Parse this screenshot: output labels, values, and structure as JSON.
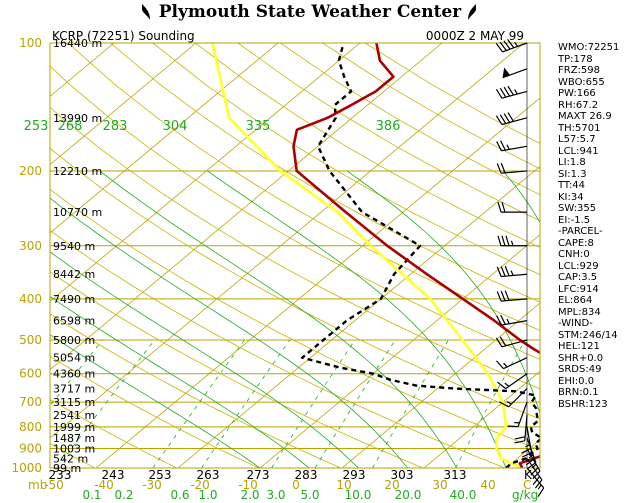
{
  "header": {
    "title": "Plymouth State Weather Center",
    "station": "KCRP (72251) Sounding",
    "time": "0000Z  2 MAY 99"
  },
  "colors": {
    "frame": "#b8a300",
    "isotherm": "#b8a300",
    "dry_adiabat": "#c8b400",
    "moist_adiabat": "#22aa22",
    "mixing_ratio": "#22aa22",
    "temperature": "#aa0000",
    "dewpoint": "#000000",
    "parcel": "#ffff33",
    "axis_text": "#b8a300",
    "theta_text": "#22aa22",
    "mixing_text": "#22aa22"
  },
  "chart_data": {
    "type": "line",
    "subtype": "skew-T log-p sounding",
    "pressure_axis": {
      "ticks": [
        100,
        200,
        300,
        400,
        500,
        600,
        700,
        800,
        900,
        1000
      ],
      "log_scale": true,
      "range": [
        100,
        1000
      ]
    },
    "temperature_axis": {
      "ticks": [
        -50,
        -40,
        -30,
        -20,
        -10,
        0,
        10,
        20,
        30,
        40
      ],
      "unit_label": "C",
      "range": [
        -50,
        50
      ]
    },
    "height_labels": [
      {
        "p": 100,
        "text": "16440 m"
      },
      {
        "p": 150,
        "text": "13990 m"
      },
      {
        "p": 200,
        "text": "12210 m"
      },
      {
        "p": 250,
        "text": "10770 m"
      },
      {
        "p": 300,
        "text": "9540 m"
      },
      {
        "p": 350,
        "text": "8442 m"
      },
      {
        "p": 400,
        "text": "7490 m"
      },
      {
        "p": 450,
        "text": "6598 m"
      },
      {
        "p": 500,
        "text": "5800 m"
      },
      {
        "p": 550,
        "text": "5054 m"
      },
      {
        "p": 600,
        "text": "4360 m"
      },
      {
        "p": 650,
        "text": "3717 m"
      },
      {
        "p": 700,
        "text": "3115 m"
      },
      {
        "p": 750,
        "text": "2541 m"
      },
      {
        "p": 800,
        "text": "1999 m"
      },
      {
        "p": 850,
        "text": "1487 m"
      },
      {
        "p": 900,
        "text": "1003 m"
      },
      {
        "p": 950,
        "text": "542 m"
      },
      {
        "p": 1000,
        "text": "99 m"
      }
    ],
    "theta_labels_top": [
      "253",
      "268",
      "283",
      "304",
      "335",
      "386"
    ],
    "theta_labels_bottom": [
      "233",
      "243",
      "253",
      "263",
      "273",
      "283",
      "293",
      "303",
      "313"
    ],
    "bottom_left_label": "mb",
    "bottom_right_label": "K",
    "mixing_ratio_labels": [
      "0.1",
      "0.2",
      "0.6",
      "1.0",
      "2.0",
      "3.0",
      "5.0",
      "10.0",
      "20.0",
      "40.0"
    ],
    "mixing_ratio_unit": "g/kg",
    "series": [
      {
        "name": "temperature",
        "points": [
          [
            1000,
            22
          ],
          [
            975,
            21
          ],
          [
            950,
            22
          ],
          [
            925,
            23
          ],
          [
            900,
            22
          ],
          [
            875,
            21
          ],
          [
            850,
            22
          ],
          [
            825,
            21.5
          ],
          [
            800,
            21
          ],
          [
            775,
            19
          ],
          [
            750,
            19
          ],
          [
            725,
            18
          ],
          [
            700,
            16.5
          ],
          [
            675,
            15
          ],
          [
            650,
            14
          ],
          [
            625,
            17.5
          ],
          [
            600,
            14
          ],
          [
            575,
            11
          ],
          [
            550,
            9
          ],
          [
            525,
            6
          ],
          [
            500,
            3
          ],
          [
            450,
            -3
          ],
          [
            400,
            -10
          ],
          [
            350,
            -18
          ],
          [
            300,
            -27
          ],
          [
            250,
            -37
          ],
          [
            200,
            -49
          ],
          [
            175,
            -53
          ],
          [
            160,
            -55
          ],
          [
            150,
            -53
          ],
          [
            140,
            -52
          ],
          [
            130,
            -51
          ],
          [
            120,
            -51
          ],
          [
            110,
            -55
          ],
          [
            100,
            -58
          ]
        ]
      },
      {
        "name": "dewpoint",
        "points": [
          [
            1000,
            20
          ],
          [
            975,
            20
          ],
          [
            950,
            21
          ],
          [
            925,
            21
          ],
          [
            900,
            21
          ],
          [
            875,
            20
          ],
          [
            850,
            20
          ],
          [
            825,
            18
          ],
          [
            800,
            17
          ],
          [
            775,
            17
          ],
          [
            750,
            16
          ],
          [
            725,
            15
          ],
          [
            700,
            13.5
          ],
          [
            675,
            13
          ],
          [
            660,
            10
          ],
          [
            650,
            2
          ],
          [
            640,
            -3
          ],
          [
            620,
            -7
          ],
          [
            600,
            -10
          ],
          [
            580,
            -15
          ],
          [
            550,
            -21
          ],
          [
            500,
            -21
          ],
          [
            450,
            -21
          ],
          [
            400,
            -20
          ],
          [
            350,
            -22
          ],
          [
            300,
            -23
          ],
          [
            250,
            -35
          ],
          [
            200,
            -45
          ],
          [
            175,
            -50
          ],
          [
            150,
            -52
          ],
          [
            140,
            -54
          ],
          [
            130,
            -54
          ],
          [
            120,
            -57
          ],
          [
            110,
            -60
          ],
          [
            100,
            -62
          ]
        ]
      },
      {
        "name": "parcel",
        "points": [
          [
            1000,
            22
          ],
          [
            950,
            18
          ],
          [
            900,
            16
          ],
          [
            850,
            14.5
          ],
          [
            800,
            14
          ],
          [
            700,
            10
          ],
          [
            600,
            4
          ],
          [
            500,
            -4
          ],
          [
            400,
            -14
          ],
          [
            300,
            -29
          ],
          [
            250,
            -38
          ],
          [
            200,
            -51
          ],
          [
            150,
            -65
          ],
          [
            100,
            -78
          ]
        ]
      }
    ],
    "wind_barbs": [
      {
        "p": 100,
        "dir": 250,
        "spd": 45
      },
      {
        "p": 115,
        "dir": 250,
        "spd": 50
      },
      {
        "p": 130,
        "dir": 255,
        "spd": 45
      },
      {
        "p": 150,
        "dir": 255,
        "spd": 40
      },
      {
        "p": 175,
        "dir": 260,
        "spd": 25
      },
      {
        "p": 200,
        "dir": 265,
        "spd": 20
      },
      {
        "p": 250,
        "dir": 270,
        "spd": 20
      },
      {
        "p": 300,
        "dir": 270,
        "spd": 35
      },
      {
        "p": 350,
        "dir": 265,
        "spd": 35
      },
      {
        "p": 400,
        "dir": 265,
        "spd": 30
      },
      {
        "p": 450,
        "dir": 260,
        "spd": 25
      },
      {
        "p": 500,
        "dir": 255,
        "spd": 20
      },
      {
        "p": 550,
        "dir": 245,
        "spd": 15
      },
      {
        "p": 600,
        "dir": 235,
        "spd": 15
      },
      {
        "p": 650,
        "dir": 225,
        "spd": 15
      },
      {
        "p": 700,
        "dir": 200,
        "spd": 15
      },
      {
        "p": 750,
        "dir": 185,
        "spd": 20
      },
      {
        "p": 800,
        "dir": 170,
        "spd": 25
      },
      {
        "p": 850,
        "dir": 160,
        "spd": 25
      },
      {
        "p": 900,
        "dir": 150,
        "spd": 25
      },
      {
        "p": 950,
        "dir": 145,
        "spd": 20
      },
      {
        "p": 1000,
        "dir": 140,
        "spd": 15
      }
    ]
  },
  "indices": [
    "WMO:72251",
    "TP:178",
    "FRZ:598",
    "WBO:655",
    "PW:166",
    "RH:67.2",
    "MAXT 26.9",
    "TH:5701",
    "L57:5.7",
    "LCL:941",
    "LI:1.8",
    "SI:1.3",
    "TT:44",
    "KI:34",
    "SW:355",
    "EI:-1.5",
    "-PARCEL-",
    "CAPE:8",
    "CNH:0",
    "LCL:929",
    "CAP:3.5",
    "LFC:914",
    "EL:864",
    "MPL:834",
    "-WIND-",
    "STM:246/14",
    "HEL:121",
    "SHR+0.0",
    "SRDS:49",
    "EHI:0.0",
    "BRN:0.1",
    "BSHR:123"
  ]
}
